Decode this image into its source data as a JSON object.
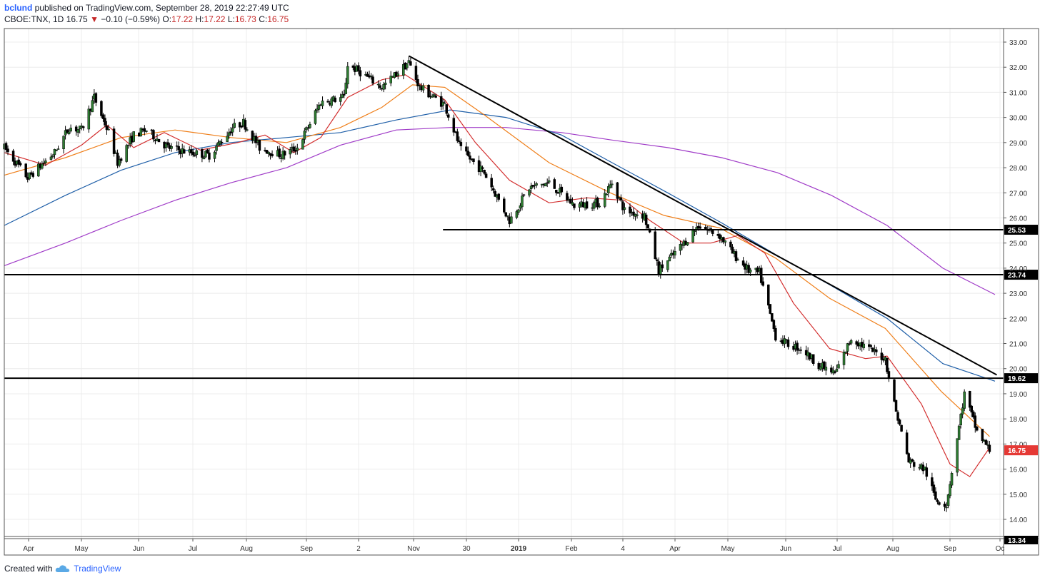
{
  "header": {
    "user": "bclund",
    "published": "published on TradingView.com, September 28, 2019 22:27:49 UTC",
    "symbol": "CBOE:TNX, 1D",
    "last": "16.75",
    "change_icon": "down-triangle-icon",
    "change": "−0.10 (−0.59%)",
    "o_label": "O:",
    "o": "17.22",
    "h_label": "H:",
    "h": "17.22",
    "l_label": "L:",
    "l": "16.73",
    "c_label": "C:",
    "c": "16.75"
  },
  "footer": {
    "created_with": "Created with",
    "brand": "TradingView",
    "logo_icon": "tradingview-cloud-icon"
  },
  "colors": {
    "up": "#26a69a",
    "up_body": "#2e7d32",
    "down": "#000000",
    "ma20": "#d32f2f",
    "ma50": "#ef7f1a",
    "ma100": "#1f5fa8",
    "ma200": "#a03cc8",
    "price_tag": "#e53935"
  },
  "chart_data": {
    "type": "candlestick",
    "x_tick_labels": [
      "Apr",
      "May",
      "Jun",
      "Jul",
      "Aug",
      "Sep",
      "2",
      "Nov",
      "30",
      "2019",
      "Feb",
      "4",
      "Apr",
      "May",
      "Jun",
      "Jul",
      "Aug",
      "Sep",
      "Oc"
    ],
    "y_tick_labels": [
      "33.00",
      "32.00",
      "31.00",
      "30.00",
      "29.00",
      "28.00",
      "27.00",
      "26.00",
      "25.00",
      "24.00",
      "23.00",
      "22.00",
      "21.00",
      "20.00",
      "19.00",
      "18.00",
      "17.00",
      "16.00",
      "15.00",
      "14.00"
    ],
    "ylim": [
      13.34,
      33.3
    ],
    "y_axis_bottom_label": "13.34",
    "grid": true,
    "horizontal_levels": [
      25.53,
      23.74,
      19.62
    ],
    "level_labels": [
      "25.53",
      "23.74",
      "19.62"
    ],
    "last_price_label": "16.75",
    "trendline": {
      "from": {
        "x": "2018-11-08",
        "y": 32.45
      },
      "to": {
        "x": "2019-10-01",
        "y": 19.75
      }
    },
    "price_path": [
      [
        "2018-03-28",
        28.8
      ],
      [
        "2018-04-10",
        27.6
      ],
      [
        "2018-04-25",
        28.6
      ],
      [
        "2018-05-03",
        29.6
      ],
      [
        "2018-05-10",
        29.5
      ],
      [
        "2018-05-17",
        30.8
      ],
      [
        "2018-05-25",
        29.4
      ],
      [
        "2018-05-30",
        28.2
      ],
      [
        "2018-06-08",
        29.3
      ],
      [
        "2018-06-15",
        29.5
      ],
      [
        "2018-06-27",
        28.8
      ],
      [
        "2018-07-10",
        28.6
      ],
      [
        "2018-07-20",
        28.5
      ],
      [
        "2018-08-02",
        29.6
      ],
      [
        "2018-08-08",
        29.8
      ],
      [
        "2018-08-17",
        28.8
      ],
      [
        "2018-08-29",
        28.5
      ],
      [
        "2018-09-07",
        28.8
      ],
      [
        "2018-09-20",
        30.6
      ],
      [
        "2018-10-03",
        30.8
      ],
      [
        "2018-10-05",
        32.1
      ],
      [
        "2018-10-12",
        31.8
      ],
      [
        "2018-10-24",
        31.2
      ],
      [
        "2018-11-08",
        32.2
      ],
      [
        "2018-11-14",
        31.2
      ],
      [
        "2018-11-28",
        30.5
      ],
      [
        "2018-12-07",
        28.7
      ],
      [
        "2018-12-20",
        27.8
      ],
      [
        "2019-01-03",
        25.9
      ],
      [
        "2019-01-14",
        27.2
      ],
      [
        "2019-01-25",
        27.4
      ],
      [
        "2019-02-08",
        26.5
      ],
      [
        "2019-02-22",
        26.6
      ],
      [
        "2019-03-01",
        27.4
      ],
      [
        "2019-03-08",
        26.3
      ],
      [
        "2019-03-19",
        26.1
      ],
      [
        "2019-03-27",
        23.9
      ],
      [
        "2019-04-10",
        25.0
      ],
      [
        "2019-04-18",
        25.7
      ],
      [
        "2019-04-30",
        25.3
      ],
      [
        "2019-05-07",
        24.6
      ],
      [
        "2019-05-16",
        23.9
      ],
      [
        "2019-05-22",
        23.8
      ],
      [
        "2019-05-31",
        21.3
      ],
      [
        "2019-06-06",
        21.0
      ],
      [
        "2019-06-14",
        20.8
      ],
      [
        "2019-06-25",
        20.1
      ],
      [
        "2019-07-03",
        19.8
      ],
      [
        "2019-07-12",
        21.2
      ],
      [
        "2019-07-31",
        20.4
      ],
      [
        "2019-08-05",
        18.6
      ],
      [
        "2019-08-13",
        16.3
      ],
      [
        "2019-08-22",
        16.0
      ],
      [
        "2019-08-28",
        14.8
      ],
      [
        "2019-09-03",
        14.6
      ],
      [
        "2019-09-13",
        19.0
      ],
      [
        "2019-09-20",
        17.5
      ],
      [
        "2019-09-27",
        16.75
      ]
    ],
    "series": [
      {
        "points": [
          [
            "2018-03-28",
            28.6
          ],
          [
            "2018-04-20",
            28.1
          ],
          [
            "2018-05-10",
            28.9
          ],
          [
            "2018-05-24",
            29.7
          ],
          [
            "2018-06-08",
            28.8
          ],
          [
            "2018-06-25",
            29.4
          ],
          [
            "2018-07-15",
            28.7
          ],
          [
            "2018-08-05",
            29.0
          ],
          [
            "2018-08-20",
            29.3
          ],
          [
            "2018-09-05",
            28.6
          ],
          [
            "2018-09-20",
            29.2
          ],
          [
            "2018-10-05",
            30.8
          ],
          [
            "2018-10-24",
            31.5
          ],
          [
            "2018-11-06",
            31.7
          ],
          [
            "2018-11-28",
            30.7
          ],
          [
            "2018-12-15",
            29.0
          ],
          [
            "2019-01-03",
            27.5
          ],
          [
            "2019-01-25",
            26.6
          ],
          [
            "2019-02-15",
            26.8
          ],
          [
            "2019-03-08",
            26.7
          ],
          [
            "2019-03-22",
            25.9
          ],
          [
            "2019-04-10",
            25.0
          ],
          [
            "2019-04-25",
            25.0
          ],
          [
            "2019-05-10",
            25.3
          ],
          [
            "2019-05-25",
            24.6
          ],
          [
            "2019-06-10",
            22.6
          ],
          [
            "2019-06-30",
            20.8
          ],
          [
            "2019-07-20",
            20.4
          ],
          [
            "2019-08-01",
            20.5
          ],
          [
            "2019-08-20",
            18.6
          ],
          [
            "2019-09-05",
            16.2
          ],
          [
            "2019-09-16",
            15.7
          ],
          [
            "2019-09-27",
            16.85
          ]
        ]
      },
      {
        "points": [
          [
            "2018-03-28",
            27.7
          ],
          [
            "2018-05-01",
            28.4
          ],
          [
            "2018-06-01",
            29.2
          ],
          [
            "2018-07-01",
            29.5
          ],
          [
            "2018-08-01",
            29.2
          ],
          [
            "2018-09-01",
            29.0
          ],
          [
            "2018-10-01",
            29.6
          ],
          [
            "2018-10-24",
            30.4
          ],
          [
            "2018-11-10",
            31.3
          ],
          [
            "2018-11-28",
            31.2
          ],
          [
            "2018-12-20",
            30.1
          ],
          [
            "2019-01-25",
            28.2
          ],
          [
            "2019-02-28",
            27.0
          ],
          [
            "2019-03-30",
            26.1
          ],
          [
            "2019-04-30",
            25.6
          ],
          [
            "2019-05-31",
            24.4
          ],
          [
            "2019-06-30",
            22.8
          ],
          [
            "2019-07-31",
            21.6
          ],
          [
            "2019-08-31",
            19.1
          ],
          [
            "2019-09-27",
            17.3
          ]
        ]
      },
      {
        "points": [
          [
            "2018-03-28",
            25.7
          ],
          [
            "2018-05-01",
            26.9
          ],
          [
            "2018-06-01",
            27.9
          ],
          [
            "2018-07-01",
            28.6
          ],
          [
            "2018-08-01",
            29.0
          ],
          [
            "2018-09-01",
            29.2
          ],
          [
            "2018-10-01",
            29.4
          ],
          [
            "2018-11-01",
            29.9
          ],
          [
            "2018-12-01",
            30.3
          ],
          [
            "2019-01-01",
            30.0
          ],
          [
            "2019-02-01",
            29.3
          ],
          [
            "2019-03-01",
            28.2
          ],
          [
            "2019-04-01",
            27.0
          ],
          [
            "2019-05-01",
            25.8
          ],
          [
            "2019-06-01",
            24.5
          ],
          [
            "2019-07-01",
            23.3
          ],
          [
            "2019-08-01",
            22.0
          ],
          [
            "2019-09-01",
            20.2
          ],
          [
            "2019-09-30",
            19.5
          ]
        ]
      },
      {
        "points": [
          [
            "2018-03-28",
            24.1
          ],
          [
            "2018-05-01",
            25.0
          ],
          [
            "2018-06-01",
            25.9
          ],
          [
            "2018-07-01",
            26.7
          ],
          [
            "2018-08-01",
            27.4
          ],
          [
            "2018-09-01",
            28.0
          ],
          [
            "2018-10-01",
            28.9
          ],
          [
            "2018-11-01",
            29.5
          ],
          [
            "2018-12-01",
            29.6
          ],
          [
            "2019-01-01",
            29.6
          ],
          [
            "2019-02-01",
            29.4
          ],
          [
            "2019-03-01",
            29.1
          ],
          [
            "2019-04-01",
            28.8
          ],
          [
            "2019-05-01",
            28.4
          ],
          [
            "2019-06-01",
            27.8
          ],
          [
            "2019-07-01",
            26.9
          ],
          [
            "2019-08-01",
            25.7
          ],
          [
            "2019-09-01",
            24.0
          ],
          [
            "2019-09-30",
            22.95
          ]
        ]
      }
    ]
  }
}
